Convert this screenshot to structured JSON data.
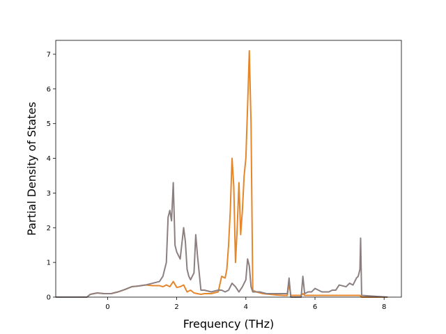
{
  "chart_data": {
    "type": "line",
    "title": "",
    "xlabel": "Frequency (THz)",
    "ylabel": "Partial Density of States",
    "xlim": [
      -1.5,
      8.5
    ],
    "ylim": [
      0,
      7.4
    ],
    "xticks": [
      0,
      2,
      4,
      6,
      8
    ],
    "yticks": [
      0,
      1,
      2,
      3,
      4,
      5,
      6,
      7
    ],
    "grid": false,
    "legend": "none",
    "series": [
      {
        "color": "#e6862b",
        "x": [
          -1.5,
          -0.6,
          -0.5,
          -0.3,
          -0.1,
          0.1,
          0.3,
          0.5,
          0.7,
          0.9,
          1.1,
          1.3,
          1.5,
          1.6,
          1.7,
          1.8,
          1.9,
          2.0,
          2.1,
          2.2,
          2.3,
          2.4,
          2.5,
          2.6,
          2.7,
          2.8,
          3.0,
          3.2,
          3.3,
          3.4,
          3.45,
          3.5,
          3.55,
          3.6,
          3.65,
          3.7,
          3.75,
          3.8,
          3.85,
          3.9,
          3.95,
          4.0,
          4.05,
          4.1,
          4.15,
          4.2,
          4.3,
          4.5,
          4.7,
          4.9,
          5.1,
          5.2,
          5.25,
          5.3,
          5.5,
          5.6,
          5.65,
          5.7,
          5.9,
          6.0,
          6.3,
          6.6,
          6.9,
          7.1,
          7.25,
          7.3,
          7.35,
          8.1
        ],
        "y": [
          0,
          0,
          0.08,
          0.12,
          0.1,
          0.1,
          0.15,
          0.22,
          0.3,
          0.32,
          0.35,
          0.33,
          0.33,
          0.3,
          0.35,
          0.3,
          0.45,
          0.28,
          0.3,
          0.35,
          0.15,
          0.2,
          0.12,
          0.1,
          0.08,
          0.1,
          0.1,
          0.15,
          0.6,
          0.55,
          0.8,
          1.5,
          2.5,
          4.0,
          3.2,
          1.0,
          2.0,
          3.3,
          1.8,
          2.5,
          3.5,
          4.0,
          5.5,
          7.1,
          5.0,
          0.2,
          0.15,
          0.1,
          0.08,
          0.06,
          0.05,
          0.05,
          0.4,
          0.05,
          0.05,
          0.05,
          0.1,
          0.05,
          0.05,
          0.05,
          0.05,
          0.05,
          0.05,
          0.05,
          0.05,
          0.05,
          0,
          0
        ]
      },
      {
        "color": "#8c7f80",
        "x": [
          -1.5,
          -0.6,
          -0.5,
          -0.3,
          -0.1,
          0.1,
          0.3,
          0.5,
          0.7,
          0.9,
          1.1,
          1.3,
          1.5,
          1.6,
          1.7,
          1.75,
          1.8,
          1.85,
          1.9,
          1.95,
          2.0,
          2.1,
          2.2,
          2.25,
          2.3,
          2.35,
          2.4,
          2.5,
          2.55,
          2.6,
          2.7,
          2.8,
          3.0,
          3.2,
          3.3,
          3.4,
          3.5,
          3.6,
          3.7,
          3.8,
          3.9,
          4.0,
          4.05,
          4.1,
          4.15,
          4.2,
          4.4,
          4.6,
          4.8,
          5.0,
          5.15,
          5.2,
          5.25,
          5.3,
          5.45,
          5.6,
          5.65,
          5.7,
          5.8,
          5.9,
          6.0,
          6.2,
          6.4,
          6.5,
          6.6,
          6.7,
          6.9,
          7.0,
          7.1,
          7.2,
          7.25,
          7.3,
          7.32,
          7.35,
          8.1
        ],
        "y": [
          0,
          0,
          0.08,
          0.12,
          0.1,
          0.1,
          0.15,
          0.22,
          0.3,
          0.32,
          0.35,
          0.4,
          0.45,
          0.6,
          1.0,
          2.3,
          2.5,
          2.2,
          3.3,
          1.5,
          1.3,
          1.1,
          2.0,
          1.6,
          0.8,
          0.6,
          0.5,
          0.7,
          1.8,
          1.2,
          0.2,
          0.2,
          0.15,
          0.2,
          0.2,
          0.15,
          0.2,
          0.4,
          0.3,
          0.15,
          0.3,
          0.5,
          1.1,
          0.9,
          0.3,
          0.15,
          0.15,
          0.1,
          0.1,
          0.1,
          0.1,
          0.1,
          0.55,
          0,
          0,
          0,
          0.6,
          0.1,
          0.15,
          0.15,
          0.25,
          0.15,
          0.15,
          0.2,
          0.2,
          0.35,
          0.3,
          0.4,
          0.35,
          0.55,
          0.6,
          0.8,
          1.7,
          0.05,
          0
        ]
      }
    ]
  }
}
